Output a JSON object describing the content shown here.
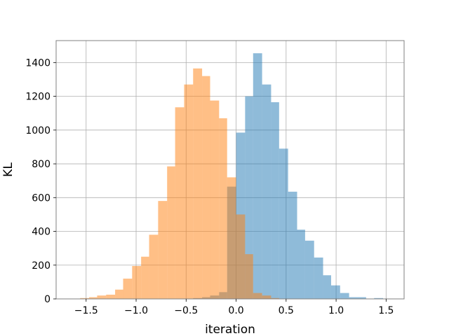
{
  "chart_data": {
    "type": "histogram",
    "xlabel": "iteration",
    "ylabel": "KL",
    "xlim": [
      -1.8,
      1.68
    ],
    "ylim": [
      0,
      1530
    ],
    "xticks": [
      -1.5,
      -1.0,
      -0.5,
      0.0,
      0.5,
      1.0,
      1.5
    ],
    "xtick_labels": [
      "−1.5",
      "−1.0",
      "−0.5",
      "0.0",
      "0.5",
      "1.0",
      "1.5"
    ],
    "yticks": [
      0,
      200,
      400,
      600,
      800,
      1000,
      1200,
      1400
    ],
    "ytick_labels": [
      "0",
      "200",
      "400",
      "600",
      "800",
      "1000",
      "1200",
      "1400"
    ],
    "grid": true,
    "legend": "none",
    "series": [
      {
        "color": "#1f77b4",
        "alpha": 0.5,
        "bins": [
          {
            "x0": -0.43,
            "x1": -0.34,
            "value": 5
          },
          {
            "x0": -0.34,
            "x1": -0.26,
            "value": 10
          },
          {
            "x0": -0.26,
            "x1": -0.17,
            "value": 20
          },
          {
            "x0": -0.17,
            "x1": -0.09,
            "value": 40
          },
          {
            "x0": -0.09,
            "x1": -0.0,
            "value": 665
          },
          {
            "x0": 0.0,
            "x1": 0.09,
            "value": 985
          },
          {
            "x0": 0.09,
            "x1": 0.17,
            "value": 1200
          },
          {
            "x0": 0.17,
            "x1": 0.26,
            "value": 1455
          },
          {
            "x0": 0.26,
            "x1": 0.35,
            "value": 1270
          },
          {
            "x0": 0.35,
            "x1": 0.43,
            "value": 1165
          },
          {
            "x0": 0.43,
            "x1": 0.52,
            "value": 890
          },
          {
            "x0": 0.52,
            "x1": 0.61,
            "value": 635
          },
          {
            "x0": 0.61,
            "x1": 0.69,
            "value": 410
          },
          {
            "x0": 0.69,
            "x1": 0.78,
            "value": 345
          },
          {
            "x0": 0.78,
            "x1": 0.87,
            "value": 245
          },
          {
            "x0": 0.87,
            "x1": 0.95,
            "value": 140
          },
          {
            "x0": 0.95,
            "x1": 1.04,
            "value": 80
          },
          {
            "x0": 1.04,
            "x1": 1.13,
            "value": 35
          },
          {
            "x0": 1.13,
            "x1": 1.21,
            "value": 10
          },
          {
            "x0": 1.21,
            "x1": 1.3,
            "value": 10
          },
          {
            "x0": 1.38,
            "x1": 1.47,
            "value": 5
          }
        ]
      },
      {
        "color": "#ff7f0e",
        "alpha": 0.5,
        "bins": [
          {
            "x0": -1.56,
            "x1": -1.47,
            "value": 5
          },
          {
            "x0": -1.47,
            "x1": -1.39,
            "value": 10
          },
          {
            "x0": -1.39,
            "x1": -1.3,
            "value": 20
          },
          {
            "x0": -1.3,
            "x1": -1.21,
            "value": 25
          },
          {
            "x0": -1.21,
            "x1": -1.13,
            "value": 55
          },
          {
            "x0": -1.13,
            "x1": -1.04,
            "value": 120
          },
          {
            "x0": -1.04,
            "x1": -0.95,
            "value": 195
          },
          {
            "x0": -0.95,
            "x1": -0.87,
            "value": 250
          },
          {
            "x0": -0.87,
            "x1": -0.78,
            "value": 380
          },
          {
            "x0": -0.78,
            "x1": -0.69,
            "value": 580
          },
          {
            "x0": -0.69,
            "x1": -0.61,
            "value": 785
          },
          {
            "x0": -0.61,
            "x1": -0.52,
            "value": 1135
          },
          {
            "x0": -0.52,
            "x1": -0.43,
            "value": 1270
          },
          {
            "x0": -0.43,
            "x1": -0.34,
            "value": 1365
          },
          {
            "x0": -0.34,
            "x1": -0.26,
            "value": 1320
          },
          {
            "x0": -0.26,
            "x1": -0.17,
            "value": 1175
          },
          {
            "x0": -0.17,
            "x1": -0.09,
            "value": 1070
          },
          {
            "x0": -0.09,
            "x1": -0.0,
            "value": 720
          },
          {
            "x0": 0.0,
            "x1": 0.09,
            "value": 500
          },
          {
            "x0": 0.09,
            "x1": 0.17,
            "value": 265
          },
          {
            "x0": 0.17,
            "x1": 0.26,
            "value": 35
          },
          {
            "x0": 0.26,
            "x1": 0.35,
            "value": 20
          },
          {
            "x0": 0.35,
            "x1": 0.43,
            "value": 5
          }
        ]
      }
    ]
  }
}
